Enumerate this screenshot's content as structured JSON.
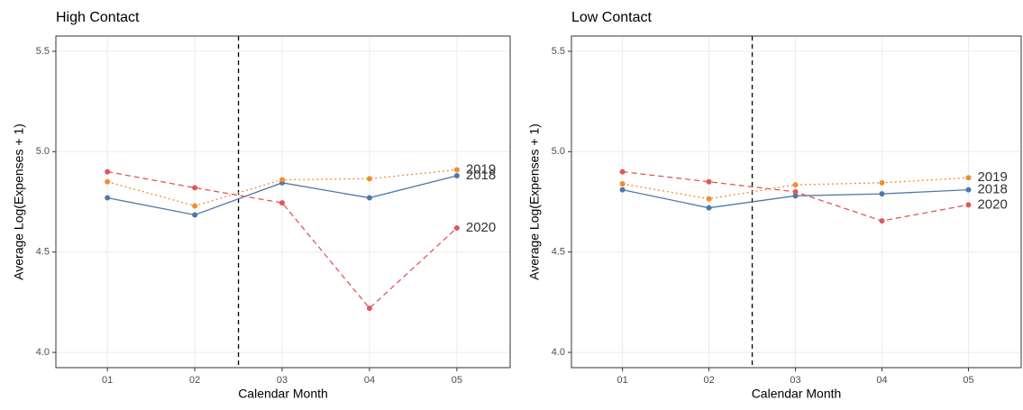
{
  "chart_data": [
    {
      "type": "line",
      "title": "High Contact",
      "x_label": "Calendar Month",
      "y_label": "Average Log(Expenses + 1)",
      "x": [
        1,
        2,
        3,
        4,
        5
      ],
      "xticks": [
        {
          "value": 1,
          "label": "01"
        },
        {
          "value": 2,
          "label": "02"
        },
        {
          "value": 3,
          "label": "03"
        },
        {
          "value": 4,
          "label": "04"
        },
        {
          "value": 5,
          "label": "05"
        }
      ],
      "xlim": [
        0.41,
        5.61
      ],
      "ylim": [
        3.924,
        5.576
      ],
      "yticks": [
        {
          "value": 4,
          "label": "4.0"
        },
        4.5,
        {
          "value": 5,
          "label": "5.0"
        },
        5.5
      ],
      "vline": 2.5,
      "grid": true,
      "series": [
        {
          "name": "2018",
          "color": "#4e79a7",
          "dash": "solid",
          "values": [
            4.77,
            4.685,
            4.845,
            4.77,
            4.88
          ]
        },
        {
          "name": "2019",
          "color": "#f28e2b",
          "dash": "dotted",
          "values": [
            4.85,
            4.73,
            4.86,
            4.865,
            4.91
          ]
        },
        {
          "name": "2020",
          "color": "#e15759",
          "dash": "dashed",
          "values": [
            4.9,
            4.82,
            4.745,
            4.22,
            4.62
          ]
        }
      ]
    },
    {
      "type": "line",
      "title": "Low Contact",
      "x_label": "Calendar Month",
      "y_label": "Average Log(Expenses + 1)",
      "x": [
        1,
        2,
        3,
        4,
        5
      ],
      "xticks": [
        {
          "value": 1,
          "label": "01"
        },
        {
          "value": 2,
          "label": "02"
        },
        {
          "value": 3,
          "label": "03"
        },
        {
          "value": 4,
          "label": "04"
        },
        {
          "value": 5,
          "label": "05"
        }
      ],
      "xlim": [
        0.41,
        5.61
      ],
      "ylim": [
        3.924,
        5.576
      ],
      "yticks": [
        {
          "value": 4,
          "label": "4.0"
        },
        4.5,
        {
          "value": 5,
          "label": "5.0"
        },
        5.5
      ],
      "vline": 2.5,
      "grid": true,
      "series": [
        {
          "name": "2018",
          "color": "#4e79a7",
          "dash": "solid",
          "values": [
            4.81,
            4.72,
            4.78,
            4.79,
            4.81
          ]
        },
        {
          "name": "2019",
          "color": "#f28e2b",
          "dash": "dotted",
          "values": [
            4.84,
            4.765,
            4.835,
            4.845,
            4.87
          ]
        },
        {
          "name": "2020",
          "color": "#e15759",
          "dash": "dashed",
          "values": [
            4.9,
            4.85,
            4.8,
            4.655,
            4.735
          ]
        }
      ]
    }
  ]
}
